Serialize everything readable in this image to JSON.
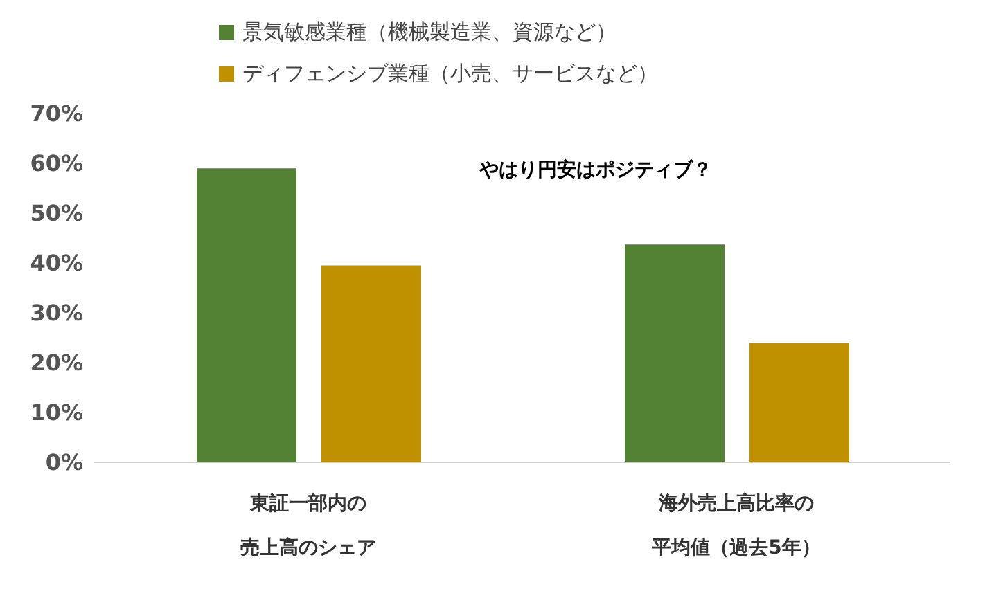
{
  "chart_data": {
    "type": "bar",
    "categories": [
      "東証一部内の売上高のシェア",
      "海外売上高比率の平均値（過去5年）"
    ],
    "series": [
      {
        "name": "景気敏感業種（機械製造業、資源など）",
        "color": "#548235",
        "values": [
          59,
          43.7
        ]
      },
      {
        "name": "ディフェンシブ業種（小売、サービスなど）",
        "color": "#bf9000",
        "values": [
          39.5,
          24
        ]
      }
    ],
    "ylim": [
      0,
      70
    ],
    "yticks": [
      {
        "value": 0,
        "label": "0%"
      },
      {
        "value": 10,
        "label": "10%"
      },
      {
        "value": 20,
        "label": "20%"
      },
      {
        "value": 30,
        "label": "30%"
      },
      {
        "value": 40,
        "label": "40%"
      },
      {
        "value": 50,
        "label": "50%"
      },
      {
        "value": 60,
        "label": "60%"
      },
      {
        "value": 70,
        "label": "70%"
      }
    ],
    "grid": false,
    "legend": "top",
    "annotations": [
      "やはり円安はポジティブ？"
    ]
  }
}
